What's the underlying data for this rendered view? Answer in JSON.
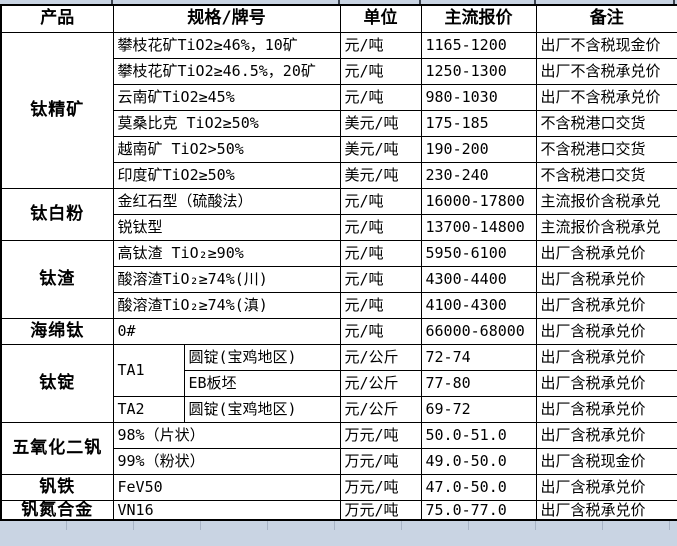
{
  "colors": {
    "spreadsheet_margin_bg": "#c9d4e3",
    "table_bg": "#ffffff",
    "border": "#000000",
    "text": "#000000"
  },
  "table": {
    "headers": [
      "产品",
      "规格/牌号",
      "单位",
      "主流报价",
      "备注"
    ],
    "groups": [
      {
        "product": "钛精矿",
        "rows": [
          {
            "spec": "攀枝花矿TiO2≥46%，10矿",
            "unit": "元/吨",
            "price": "1165-1200",
            "note": "出厂不含税现金价"
          },
          {
            "spec": "攀枝花矿TiO2≥46.5%，20矿",
            "unit": "元/吨",
            "price": "1250-1300",
            "note": "出厂不含税承兑价"
          },
          {
            "spec": "云南矿TiO2≥45%",
            "unit": "元/吨",
            "price": "980-1030",
            "note": "出厂不含税承兑价"
          },
          {
            "spec": "莫桑比克 TiO2≥50%",
            "unit": "美元/吨",
            "price": "175-185",
            "note": "不含税港口交货"
          },
          {
            "spec": "越南矿 TiO2>50%",
            "unit": "美元/吨",
            "price": "190-200",
            "note": "不含税港口交货"
          },
          {
            "spec": "印度矿TiO2≥50%",
            "unit": "美元/吨",
            "price": "230-240",
            "note": "不含税港口交货"
          }
        ]
      },
      {
        "product": "钛白粉",
        "rows": [
          {
            "spec": "金红石型（硫酸法）",
            "unit": "元/吨",
            "price": "16000-17800",
            "note": "主流报价含税承兑"
          },
          {
            "spec": "锐钛型",
            "unit": "元/吨",
            "price": "13700-14800",
            "note": "主流报价含税承兑"
          }
        ]
      },
      {
        "product": "钛渣",
        "rows": [
          {
            "spec": "高钛渣 TiO₂≥90%",
            "unit": "元/吨",
            "price": "5950-6100",
            "note": "出厂含税承兑价"
          },
          {
            "spec": "酸溶渣TiO₂≥74%(川)",
            "unit": "元/吨",
            "price": "4300-4400",
            "note": "出厂含税承兑价"
          },
          {
            "spec": "酸溶渣TiO₂≥74%(滇)",
            "unit": "元/吨",
            "price": "4100-4300",
            "note": "出厂含税承兑价"
          }
        ]
      },
      {
        "product": "海绵钛",
        "rows": [
          {
            "spec": "0#",
            "unit": "元/吨",
            "price": "66000-68000",
            "note": "出厂含税承兑价"
          }
        ]
      },
      {
        "product": "钛锭",
        "rows": [
          {
            "spec": "TA1",
            "spec_rowspan": 2,
            "spec2": "圆锭(宝鸡地区)",
            "unit": "元/公斤",
            "price": "72-74",
            "note": "出厂含税承兑价"
          },
          {
            "spec2": "EB板坯",
            "unit": "元/公斤",
            "price": "77-80",
            "note": "出厂含税承兑价"
          },
          {
            "spec": "TA2",
            "spec2": "圆锭(宝鸡地区)",
            "unit": "元/公斤",
            "price": "69-72",
            "note": "出厂含税承兑价"
          }
        ]
      },
      {
        "product": "五氧化二钒",
        "rows": [
          {
            "spec": "98%（片状）",
            "unit": "万元/吨",
            "price": "50.0-51.0",
            "note": "出厂含税承兑价"
          },
          {
            "spec": "99%（粉状）",
            "unit": "万元/吨",
            "price": "49.0-50.0",
            "note": "出厂含税现金价"
          }
        ]
      },
      {
        "product": "钒铁",
        "rows": [
          {
            "spec": "FeV50",
            "unit": "万元/吨",
            "price": "47.0-50.0",
            "note": "出厂含税承兑价"
          }
        ]
      },
      {
        "product": "钒氮合金",
        "rows": [
          {
            "spec": "VN16",
            "unit": "万元/吨",
            "price": "75.0-77.0",
            "note": "出厂含税承兑价"
          }
        ]
      }
    ]
  }
}
